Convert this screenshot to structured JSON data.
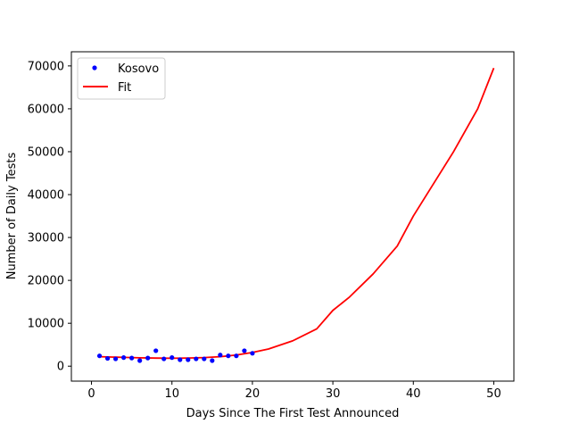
{
  "chart_data": {
    "type": "scatter",
    "xlabel": "Days Since The First Test Announced",
    "ylabel": "Number of Daily Tests",
    "xlim": [
      -2.5,
      52.5
    ],
    "ylim": [
      -3490,
      73300
    ],
    "xticks": [
      0,
      10,
      20,
      30,
      40,
      50
    ],
    "yticks": [
      0,
      10000,
      20000,
      30000,
      40000,
      50000,
      60000,
      70000
    ],
    "grid": false,
    "legend_position": "top-left",
    "legend": [
      {
        "label": "Kosovo",
        "marker": "point",
        "color": "#0000ff"
      },
      {
        "label": "Fit",
        "marker": "line",
        "color": "#ff0000"
      }
    ],
    "series": [
      {
        "name": "Kosovo",
        "kind": "scatter",
        "color": "#0000ff",
        "x": [
          1,
          2,
          3,
          4,
          5,
          6,
          7,
          8,
          9,
          10,
          11,
          12,
          13,
          14,
          15,
          16,
          17,
          18,
          19,
          20
        ],
        "y": [
          2400,
          1800,
          1700,
          2000,
          1900,
          1300,
          1900,
          3600,
          1700,
          2000,
          1500,
          1500,
          1700,
          1700,
          1300,
          2600,
          2400,
          2400,
          3600,
          3000
        ]
      },
      {
        "name": "Fit",
        "kind": "line",
        "color": "#ff0000",
        "x": [
          1,
          2,
          4,
          6,
          8,
          10,
          12,
          14,
          16,
          18,
          20,
          22,
          25,
          28,
          30,
          32,
          35,
          38,
          40,
          42,
          45,
          48,
          50
        ],
        "y": [
          2200,
          2150,
          2050,
          1950,
          1880,
          1850,
          1900,
          2000,
          2200,
          2600,
          3200,
          4000,
          5900,
          8700,
          13000,
          16000,
          21500,
          28000,
          35000,
          41000,
          50000,
          60000,
          69500
        ]
      }
    ]
  }
}
